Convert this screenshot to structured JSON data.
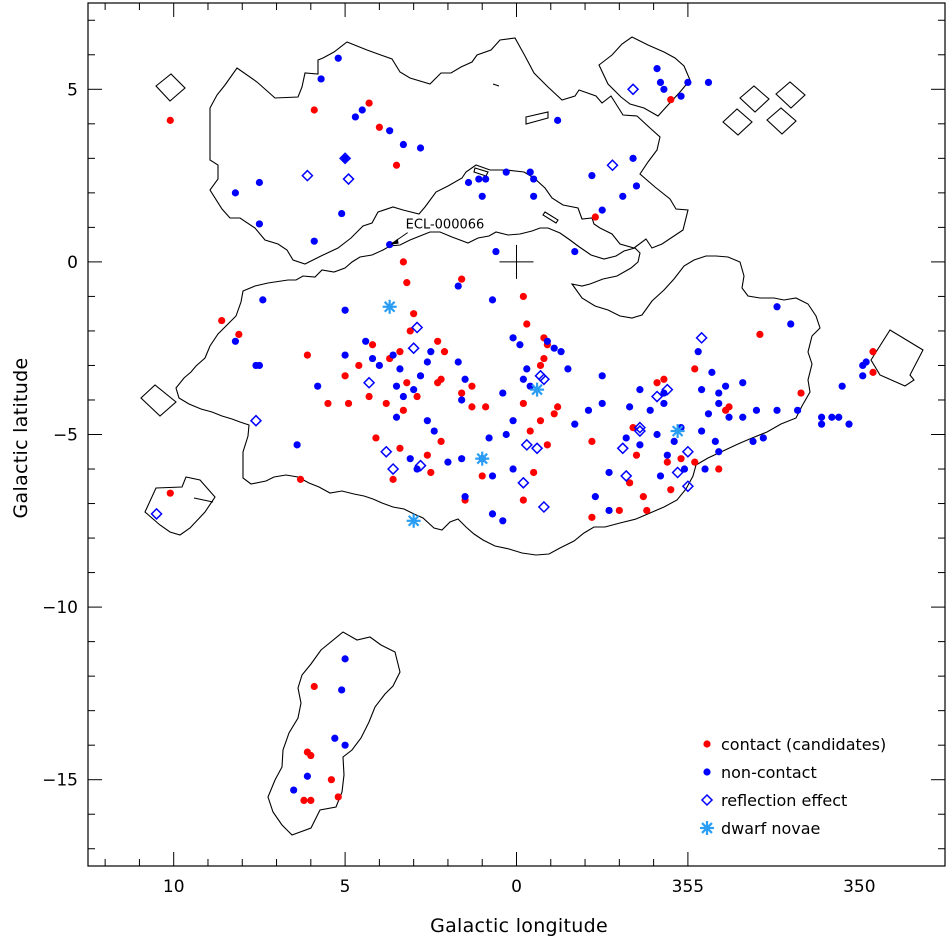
{
  "chart_data": {
    "type": "scatter",
    "xlabel": "Galactic longitude",
    "ylabel": "Galactic latitude",
    "xlim": [
      12.5,
      347.5
    ],
    "ylim": [
      -17.5,
      7.5
    ],
    "x_reversed": true,
    "x_ticks": [
      {
        "value": 10,
        "label": "10"
      },
      {
        "value": 5,
        "label": "5"
      },
      {
        "value": 0,
        "label": "0"
      },
      {
        "value": 355,
        "label": "355"
      },
      {
        "value": 350,
        "label": "350"
      }
    ],
    "y_ticks": [
      {
        "value": 5,
        "label": "5"
      },
      {
        "value": 0,
        "label": "0"
      },
      {
        "value": -5,
        "label": "−5"
      },
      {
        "value": -10,
        "label": "−10"
      },
      {
        "value": -15,
        "label": "−15"
      }
    ],
    "legend_position": "bottom-right",
    "annotations": [
      {
        "text": "ECL-000066",
        "target": [
          3.7,
          0.5
        ]
      }
    ],
    "center_marker": [
      0,
      0
    ],
    "series": [
      {
        "name": "contact (candidates)",
        "marker": "filled-circle",
        "color": "#ff0000",
        "points": [
          [
            5.9,
            4.4
          ],
          [
            4.3,
            4.6
          ],
          [
            4.0,
            3.9
          ],
          [
            3.5,
            2.8
          ],
          [
            10.1,
            4.1
          ],
          [
            -4.5,
            4.7
          ],
          [
            -2.3,
            1.3
          ],
          [
            3.3,
            0.0
          ],
          [
            3.2,
            -0.6
          ],
          [
            1.6,
            -0.5
          ],
          [
            -0.2,
            -1.0
          ],
          [
            -0.3,
            -1.8
          ],
          [
            3.0,
            -1.5
          ],
          [
            8.1,
            -2.1
          ],
          [
            8.6,
            -1.7
          ],
          [
            6.1,
            -2.7
          ],
          [
            5.0,
            -3.3
          ],
          [
            4.6,
            -3.0
          ],
          [
            4.2,
            -2.4
          ],
          [
            3.7,
            -2.8
          ],
          [
            3.4,
            -2.6
          ],
          [
            3.1,
            -2.0
          ],
          [
            2.3,
            -2.3
          ],
          [
            2.1,
            -2.6
          ],
          [
            1.6,
            -3.8
          ],
          [
            1.3,
            -3.6
          ],
          [
            3.2,
            -3.5
          ],
          [
            3.3,
            -4.3
          ],
          [
            2.9,
            -3.9
          ],
          [
            3.8,
            -4.1
          ],
          [
            4.3,
            -3.9
          ],
          [
            4.9,
            -4.1
          ],
          [
            5.5,
            -4.1
          ],
          [
            4.1,
            -5.1
          ],
          [
            3.6,
            -6.3
          ],
          [
            3.4,
            -5.4
          ],
          [
            2.6,
            -5.6
          ],
          [
            2.5,
            -6.1
          ],
          [
            2.2,
            -5.2
          ],
          [
            2.3,
            -3.5
          ],
          [
            2.2,
            -3.4
          ],
          [
            1.3,
            -4.2
          ],
          [
            0.9,
            -4.2
          ],
          [
            1.0,
            -6.2
          ],
          [
            1.5,
            -6.9
          ],
          [
            -0.2,
            -6.9
          ],
          [
            -0.5,
            -6.1
          ],
          [
            -0.4,
            -4.9
          ],
          [
            -0.9,
            -5.3
          ],
          [
            -0.2,
            -4.1
          ],
          [
            -0.7,
            -4.6
          ],
          [
            -0.7,
            -3.0
          ],
          [
            -0.8,
            -2.8
          ],
          [
            -0.9,
            -2.4
          ],
          [
            -0.8,
            -2.2
          ],
          [
            -1.1,
            -4.4
          ],
          [
            -1.2,
            -4.2
          ],
          [
            -2.2,
            -5.2
          ],
          [
            -3.4,
            -4.8
          ],
          [
            -3.5,
            -5.6
          ],
          [
            -3.3,
            -6.4
          ],
          [
            -3.7,
            -6.8
          ],
          [
            -3.0,
            -7.2
          ],
          [
            -4.4,
            -5.8
          ],
          [
            -4.8,
            -5.7
          ],
          [
            -4.5,
            -6.6
          ],
          [
            -3.8,
            -7.2
          ],
          [
            -2.2,
            -7.4
          ],
          [
            -4.1,
            -3.5
          ],
          [
            -4.3,
            -3.4
          ],
          [
            -5.2,
            -5.8
          ],
          [
            -5.9,
            -6.0
          ],
          [
            -6.1,
            -4.3
          ],
          [
            -5.2,
            -3.1
          ],
          [
            -6.2,
            -4.2
          ],
          [
            -7.1,
            -2.1
          ],
          [
            -8.3,
            -3.8
          ],
          [
            -10.4,
            -3.2
          ],
          [
            -10.4,
            -2.6
          ],
          [
            6.3,
            -6.3
          ],
          [
            10.1,
            -6.7
          ],
          [
            5.9,
            -12.3
          ],
          [
            6.1,
            -14.2
          ],
          [
            6.0,
            -14.3
          ],
          [
            6.2,
            -15.6
          ],
          [
            6.0,
            -15.6
          ],
          [
            5.4,
            -15.0
          ],
          [
            5.2,
            -15.5
          ]
        ]
      },
      {
        "name": "non-contact",
        "marker": "filled-circle",
        "color": "#0000ff",
        "points": [
          [
            5.7,
            5.3
          ],
          [
            5.2,
            5.9
          ],
          [
            4.7,
            4.2
          ],
          [
            4.5,
            4.4
          ],
          [
            3.7,
            3.8
          ],
          [
            3.3,
            3.4
          ],
          [
            2.8,
            3.3
          ],
          [
            5.0,
            3.0
          ],
          [
            8.2,
            2.0
          ],
          [
            7.5,
            2.3
          ],
          [
            5.1,
            1.4
          ],
          [
            7.5,
            1.1
          ],
          [
            5.9,
            0.6
          ],
          [
            3.7,
            0.5
          ],
          [
            0.6,
            0.3
          ],
          [
            1.4,
            2.3
          ],
          [
            1.1,
            2.4
          ],
          [
            0.9,
            2.4
          ],
          [
            1.0,
            1.9
          ],
          [
            0.3,
            2.6
          ],
          [
            -0.4,
            2.6
          ],
          [
            -0.5,
            2.4
          ],
          [
            -0.5,
            1.9
          ],
          [
            -1.2,
            4.1
          ],
          [
            -2.2,
            2.5
          ],
          [
            -2.5,
            1.5
          ],
          [
            -3.5,
            2.2
          ],
          [
            -3.4,
            3.0
          ],
          [
            -3.1,
            1.9
          ],
          [
            -4.1,
            5.6
          ],
          [
            -4.2,
            5.2
          ],
          [
            -4.3,
            5.0
          ],
          [
            -5.0,
            5.2
          ],
          [
            -4.8,
            4.8
          ],
          [
            -5.6,
            5.2
          ],
          [
            -1.7,
            0.3
          ],
          [
            1.7,
            -0.7
          ],
          [
            0.7,
            -1.1
          ],
          [
            5.0,
            -1.4
          ],
          [
            7.4,
            -1.1
          ],
          [
            8.2,
            -2.3
          ],
          [
            7.5,
            -3.0
          ],
          [
            5.8,
            -3.6
          ],
          [
            5.0,
            -2.7
          ],
          [
            4.4,
            -2.3
          ],
          [
            4.2,
            -2.8
          ],
          [
            4.0,
            -3.0
          ],
          [
            3.6,
            -2.7
          ],
          [
            3.4,
            -3.1
          ],
          [
            3.5,
            -3.6
          ],
          [
            3.0,
            -3.7
          ],
          [
            3.3,
            -3.9
          ],
          [
            2.8,
            -3.3
          ],
          [
            2.6,
            -2.9
          ],
          [
            2.5,
            -2.6
          ],
          [
            1.7,
            -2.9
          ],
          [
            1.5,
            -3.4
          ],
          [
            1.6,
            -4.0
          ],
          [
            3.5,
            -4.5
          ],
          [
            2.6,
            -4.6
          ],
          [
            2.4,
            -4.9
          ],
          [
            3.1,
            -5.7
          ],
          [
            2.9,
            -6.0
          ],
          [
            2.0,
            -5.8
          ],
          [
            1.5,
            -6.8
          ],
          [
            1.6,
            -5.7
          ],
          [
            1.0,
            -5.7
          ],
          [
            0.8,
            -5.1
          ],
          [
            0.7,
            -6.2
          ],
          [
            0.7,
            -7.3
          ],
          [
            0.4,
            -7.5
          ],
          [
            0.3,
            -5.0
          ],
          [
            0.1,
            -6.0
          ],
          [
            0.1,
            -4.6
          ],
          [
            0.4,
            -3.8
          ],
          [
            -0.2,
            -3.4
          ],
          [
            -0.4,
            -3.6
          ],
          [
            -0.3,
            -3.1
          ],
          [
            -0.1,
            -2.4
          ],
          [
            0.1,
            -2.2
          ],
          [
            -0.9,
            -2.3
          ],
          [
            -1.1,
            -2.5
          ],
          [
            -1.3,
            -2.6
          ],
          [
            -1.5,
            -3.1
          ],
          [
            -1.7,
            -4.7
          ],
          [
            -2.1,
            -4.3
          ],
          [
            -2.5,
            -3.3
          ],
          [
            -2.5,
            -4.1
          ],
          [
            -2.7,
            -6.1
          ],
          [
            -2.3,
            -6.8
          ],
          [
            -2.7,
            -7.2
          ],
          [
            -3.2,
            -5.1
          ],
          [
            -3.6,
            -5.3
          ],
          [
            -3.3,
            -4.2
          ],
          [
            -3.6,
            -3.7
          ],
          [
            -3.9,
            -4.3
          ],
          [
            -4.1,
            -5.0
          ],
          [
            -4.4,
            -5.6
          ],
          [
            -5.7,
            -3.2
          ],
          [
            -5.4,
            -3.7
          ],
          [
            -5.9,
            -3.8
          ],
          [
            -6.1,
            -3.6
          ],
          [
            -6.6,
            -3.5
          ],
          [
            -6.2,
            -4.5
          ],
          [
            -5.9,
            -5.5
          ],
          [
            -4.8,
            -4.8
          ],
          [
            -4.3,
            -4.1
          ],
          [
            -4.3,
            -3.8
          ],
          [
            -5.6,
            -4.4
          ],
          [
            -4.9,
            -6.0
          ],
          [
            -4.2,
            -6.2
          ],
          [
            -4.6,
            -5.2
          ],
          [
            -5.4,
            -4.9
          ],
          [
            -5.8,
            -5.2
          ],
          [
            -5.5,
            -6.0
          ],
          [
            -6.6,
            -4.5
          ],
          [
            -5.3,
            -2.6
          ],
          [
            -5.9,
            -4.1
          ],
          [
            -7.0,
            -4.3
          ],
          [
            -7.6,
            -1.3
          ],
          [
            -8.0,
            -1.8
          ],
          [
            -8.9,
            -4.7
          ],
          [
            -8.9,
            -4.5
          ],
          [
            -10.1,
            -3.0
          ],
          [
            -10.1,
            -3.3
          ],
          [
            -9.5,
            -3.6
          ],
          [
            -9.4,
            -4.5
          ],
          [
            -9.2,
            -4.5
          ],
          [
            -9.7,
            -4.7
          ],
          [
            -7.6,
            -4.3
          ],
          [
            -7.2,
            -5.1
          ],
          [
            -6.9,
            -5.2
          ],
          [
            -8.2,
            -4.3
          ],
          [
            -10.2,
            -2.9
          ],
          [
            6.4,
            -5.3
          ],
          [
            7.6,
            -3.0
          ],
          [
            5.0,
            -11.5
          ],
          [
            5.1,
            -12.4
          ],
          [
            5.3,
            -13.8
          ],
          [
            5.0,
            -14.0
          ],
          [
            6.5,
            -15.3
          ],
          [
            6.1,
            -14.9
          ]
        ]
      },
      {
        "name": "reflection effect",
        "marker": "open-diamond",
        "color": "#0000ff",
        "points": [
          [
            10.5,
            -7.3
          ],
          [
            7.6,
            -4.6
          ],
          [
            6.1,
            2.5
          ],
          [
            5.0,
            3.0
          ],
          [
            4.9,
            2.4
          ],
          [
            2.9,
            -1.9
          ],
          [
            3.0,
            -2.5
          ],
          [
            4.3,
            -3.5
          ],
          [
            3.8,
            -5.5
          ],
          [
            3.6,
            -6.0
          ],
          [
            2.8,
            -5.9
          ],
          [
            -0.8,
            -3.4
          ],
          [
            -0.7,
            -3.3
          ],
          [
            -0.6,
            -5.4
          ],
          [
            -0.8,
            -7.1
          ],
          [
            -0.2,
            -6.4
          ],
          [
            -0.3,
            -5.3
          ],
          [
            -3.1,
            -5.4
          ],
          [
            -3.2,
            -6.2
          ],
          [
            -3.6,
            -4.9
          ],
          [
            -4.1,
            -3.9
          ],
          [
            -4.4,
            -3.7
          ],
          [
            -4.7,
            -6.1
          ],
          [
            -5.0,
            -6.5
          ],
          [
            -5.0,
            -5.5
          ],
          [
            -5.4,
            -2.2
          ],
          [
            -2.8,
            2.8
          ],
          [
            -3.4,
            5.0
          ],
          [
            -3.6,
            -4.8
          ]
        ]
      },
      {
        "name": "dwarf novae",
        "marker": "asterisk",
        "color": "#2a9df4",
        "points": [
          [
            3.7,
            -1.3
          ],
          [
            1.0,
            -5.7
          ],
          [
            -0.6,
            -3.7
          ],
          [
            3.0,
            -7.5
          ],
          [
            -4.7,
            -4.9
          ]
        ]
      }
    ]
  }
}
